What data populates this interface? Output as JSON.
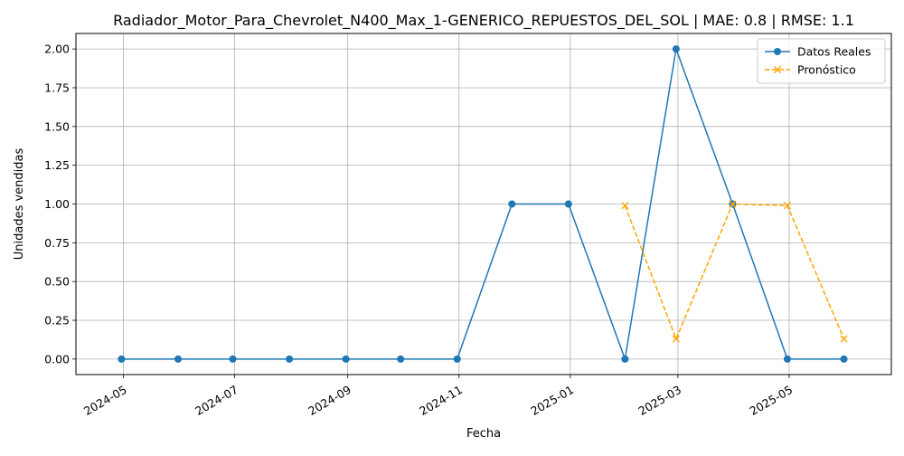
{
  "chart_data": {
    "type": "line",
    "title": "Radiador_Motor_Para_Chevrolet_N400_Max_1-GENERICO_REPUESTOS_DEL_SOL | MAE: 0.8 | RMSE: 1.1",
    "xlabel": "Fecha",
    "ylabel": "Unidades vendidas",
    "xlim": [
      "2024-04-05",
      "2025-06-26"
    ],
    "ylim": [
      -0.1,
      2.1
    ],
    "grid": true,
    "legend_position": "top-right",
    "x_ticks": [
      "2024-05",
      "2024-07",
      "2024-09",
      "2024-11",
      "2025-01",
      "2025-03",
      "2025-05"
    ],
    "x_tick_dates": [
      "2024-05-01",
      "2024-07-01",
      "2024-09-01",
      "2024-11-01",
      "2025-01-01",
      "2025-03-01",
      "2025-05-01"
    ],
    "y_ticks": [
      0.0,
      0.25,
      0.5,
      0.75,
      1.0,
      1.25,
      1.5,
      1.75,
      2.0
    ],
    "y_tick_labels": [
      "0.00",
      "0.25",
      "0.50",
      "0.75",
      "1.00",
      "1.25",
      "1.50",
      "1.75",
      "2.00"
    ],
    "series": [
      {
        "name": "Datos Reales",
        "color": "#1f77b4",
        "marker": "circle",
        "line_style": "solid",
        "x": [
          "2024-04-30",
          "2024-05-31",
          "2024-06-30",
          "2024-07-31",
          "2024-08-31",
          "2024-09-30",
          "2024-10-31",
          "2024-11-30",
          "2024-12-31",
          "2025-01-31",
          "2025-02-28",
          "2025-03-31",
          "2025-04-30",
          "2025-05-31"
        ],
        "values": [
          0,
          0,
          0,
          0,
          0,
          0,
          0,
          1,
          1,
          0,
          2,
          1,
          0,
          0
        ]
      },
      {
        "name": "Pronóstico",
        "color": "#ffa500",
        "marker": "x",
        "line_style": "dashed",
        "x": [
          "2025-01-31",
          "2025-02-28",
          "2025-03-31",
          "2025-04-30",
          "2025-05-31"
        ],
        "values": [
          0.99,
          0.13,
          1.0,
          0.99,
          0.13
        ]
      }
    ]
  }
}
